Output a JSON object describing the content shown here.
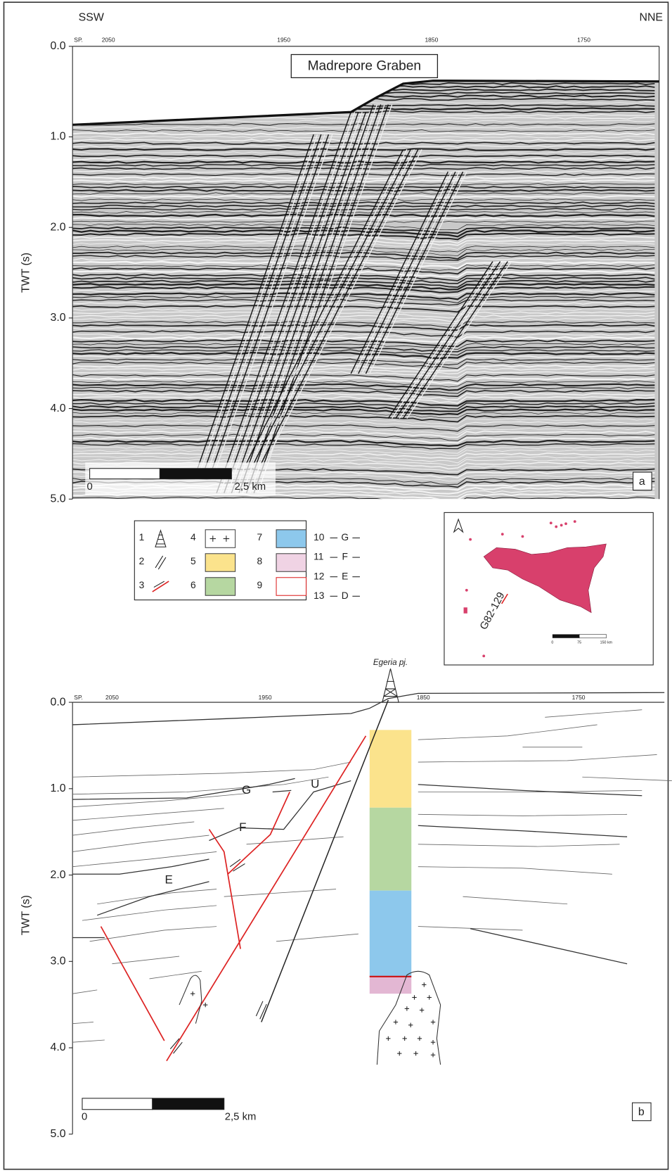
{
  "panel_a": {
    "direction_left": "SSW",
    "direction_right": "NNE",
    "sp_label": "SP.",
    "shot_points": [
      "2050",
      "1950",
      "1850",
      "1750"
    ],
    "y_ticks": [
      "0.0",
      "1.0",
      "2.0",
      "3.0",
      "4.0",
      "5.0"
    ],
    "y_axis_label": "TWT (s)",
    "title": "Madrepore Graben",
    "scale_start": "0",
    "scale_end": "2,5 km",
    "panel_label": "a"
  },
  "legend": {
    "items": [
      {
        "number": "1"
      },
      {
        "number": "2"
      },
      {
        "number": "3"
      },
      {
        "number": "4"
      },
      {
        "number": "5"
      },
      {
        "number": "6"
      },
      {
        "number": "7"
      },
      {
        "number": "8"
      },
      {
        "number": "9"
      },
      {
        "number": "10",
        "label": "G"
      },
      {
        "number": "11",
        "label": "F"
      },
      {
        "number": "12",
        "label": "E"
      },
      {
        "number": "13",
        "label": "D"
      }
    ]
  },
  "map": {
    "line_label": "G82-129",
    "scale_ticks": [
      "0",
      "75",
      "150 km"
    ]
  },
  "panel_b": {
    "well_label": "Egeria pj.",
    "sp_label": "SP.",
    "shot_points": [
      "2050",
      "1950",
      "1850",
      "1750"
    ],
    "y_ticks": [
      "0.0",
      "1.0",
      "2.0",
      "3.0",
      "4.0",
      "5.0"
    ],
    "y_axis_label": "TWT (s)",
    "horizon_labels": [
      "G",
      "U",
      "F",
      "E"
    ],
    "scale_start": "0",
    "scale_end": "2,5 km",
    "panel_label": "b"
  }
}
